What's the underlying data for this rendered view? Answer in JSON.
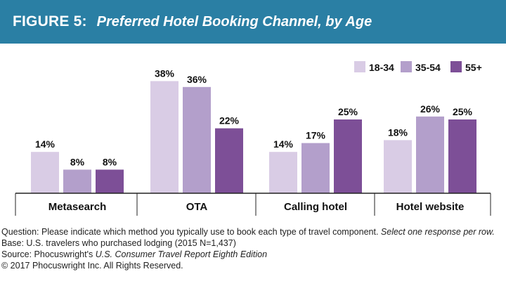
{
  "header": {
    "figure_label": "FIGURE 5:",
    "title": "Preferred Hotel Booking Channel, by Age"
  },
  "colors": {
    "header_bg": "#2a7fa4",
    "series": [
      "#d9cce5",
      "#b39fcb",
      "#7d4f97"
    ]
  },
  "chart_data": {
    "type": "bar",
    "title": "Preferred Hotel Booking Channel, by Age",
    "categories": [
      "Metasearch",
      "OTA",
      "Calling hotel",
      "Hotel website"
    ],
    "series": [
      {
        "name": "18-34",
        "values": [
          14,
          38,
          14,
          18
        ],
        "labels": [
          "14%",
          "38%",
          "14%",
          "18%"
        ]
      },
      {
        "name": "35-54",
        "values": [
          8,
          36,
          17,
          26
        ],
        "labels": [
          "8%",
          "36%",
          "17%",
          "26%"
        ]
      },
      {
        "name": "55+",
        "values": [
          8,
          22,
          25,
          25
        ],
        "labels": [
          "8%",
          "22%",
          "25%",
          "25%"
        ]
      }
    ],
    "ylim": [
      0,
      40
    ],
    "grid": false,
    "legend": "top-right"
  },
  "footnotes": {
    "question": "Question: Please indicate which method you typically use to book each type of travel component.",
    "question_italic": "Select one response per row.",
    "base": "Base: U.S. travelers who purchased lodging (2015 N=1,437)",
    "source_prefix": "Source: Phocuswright's",
    "source_italic": "U.S. Consumer Travel Report Eighth Edition",
    "copyright": "© 2017 Phocuswright Inc. All Rights Reserved."
  }
}
